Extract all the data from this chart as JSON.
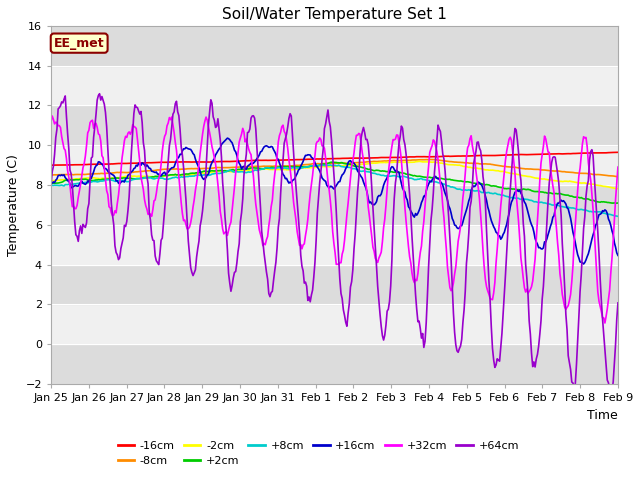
{
  "title": "Soil/Water Temperature Set 1",
  "xlabel": "Time",
  "ylabel": "Temperature (C)",
  "ylim": [
    -2,
    16
  ],
  "yticks": [
    -2,
    0,
    2,
    4,
    6,
    8,
    10,
    12,
    14,
    16
  ],
  "annotation_text": "EE_met",
  "annotation_box_color": "#ffffcc",
  "annotation_border_color": "#8B0000",
  "figure_bg": "#ffffff",
  "plot_bg_light": "#f0f0f0",
  "plot_bg_dark": "#dcdcdc",
  "legend_entries": [
    "-16cm",
    "-8cm",
    "-2cm",
    "+2cm",
    "+8cm",
    "+16cm",
    "+32cm",
    "+64cm"
  ],
  "legend_colors": [
    "#ff0000",
    "#ff8c00",
    "#ffff00",
    "#00cc00",
    "#00cccc",
    "#0000cc",
    "#ff00ff",
    "#9900cc"
  ],
  "xtick_labels": [
    "Jan 25",
    "Jan 26",
    "Jan 27",
    "Jan 28",
    "Jan 29",
    "Jan 30",
    "Jan 31",
    "Feb 1",
    "Feb 2",
    "Feb 3",
    "Feb 4",
    "Feb 5",
    "Feb 6",
    "Feb 7",
    "Feb 8",
    "Feb 9"
  ],
  "n_points": 480
}
